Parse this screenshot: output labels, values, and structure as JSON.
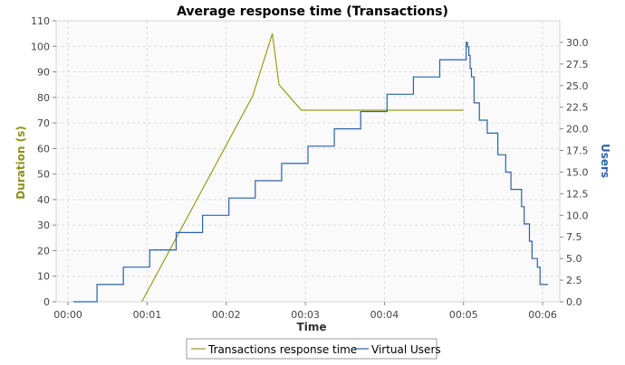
{
  "chart_data": {
    "type": "line",
    "title": "Average response time (Transactions)",
    "xlabel": "Time",
    "ylabel_left": "Duration (s)",
    "ylabel_right": "Users",
    "x_ticks": [
      "00:00",
      "00:01",
      "00:02",
      "00:03",
      "00:04",
      "00:05",
      "00:06"
    ],
    "xlim_seconds": [
      -9,
      373
    ],
    "y_left": {
      "min": 0,
      "max": 110,
      "ticks": [
        "0",
        "10",
        "20",
        "30",
        "40",
        "50",
        "60",
        "70",
        "80",
        "90",
        "100",
        "110"
      ]
    },
    "y_right": {
      "min": 0,
      "max": 32.5,
      "ticks": [
        "0.0",
        "2.5",
        "5.0",
        "7.5",
        "10.0",
        "12.5",
        "15.0",
        "17.5",
        "20.0",
        "22.5",
        "25.0",
        "27.5",
        "30.0"
      ]
    },
    "grid": true,
    "legend_position": "bottom",
    "colors": {
      "transactions": "#9a9a1e",
      "users": "#2b63a8",
      "left_axis_label": "#8f8f1a",
      "right_axis_label": "#2b63a8",
      "plot_bg": "#fafafa"
    },
    "series": [
      {
        "name": "Transactions response time",
        "axis": "left",
        "step": false,
        "x": [
          56,
          140,
          155,
          160,
          177,
          300
        ],
        "y": [
          0,
          80.5,
          105,
          85,
          75,
          75
        ]
      },
      {
        "name": "Virtual Users",
        "axis": "right",
        "step": true,
        "x": [
          4,
          22,
          42,
          62,
          82,
          102,
          122,
          142,
          162,
          182,
          202,
          222,
          242,
          262,
          282,
          302,
          303,
          304,
          305,
          306,
          308,
          312,
          318,
          326,
          332,
          336,
          344,
          346,
          350,
          352,
          356,
          358,
          360,
          362,
          364
        ],
        "y": [
          0,
          2,
          4,
          6,
          8,
          10,
          12,
          14,
          16,
          18,
          20,
          22,
          24,
          26,
          28,
          30,
          29.5,
          28.5,
          27,
          26,
          23,
          21,
          19.5,
          17,
          15,
          13,
          11,
          9,
          7,
          5,
          4,
          2,
          2,
          2,
          2
        ]
      }
    ]
  }
}
